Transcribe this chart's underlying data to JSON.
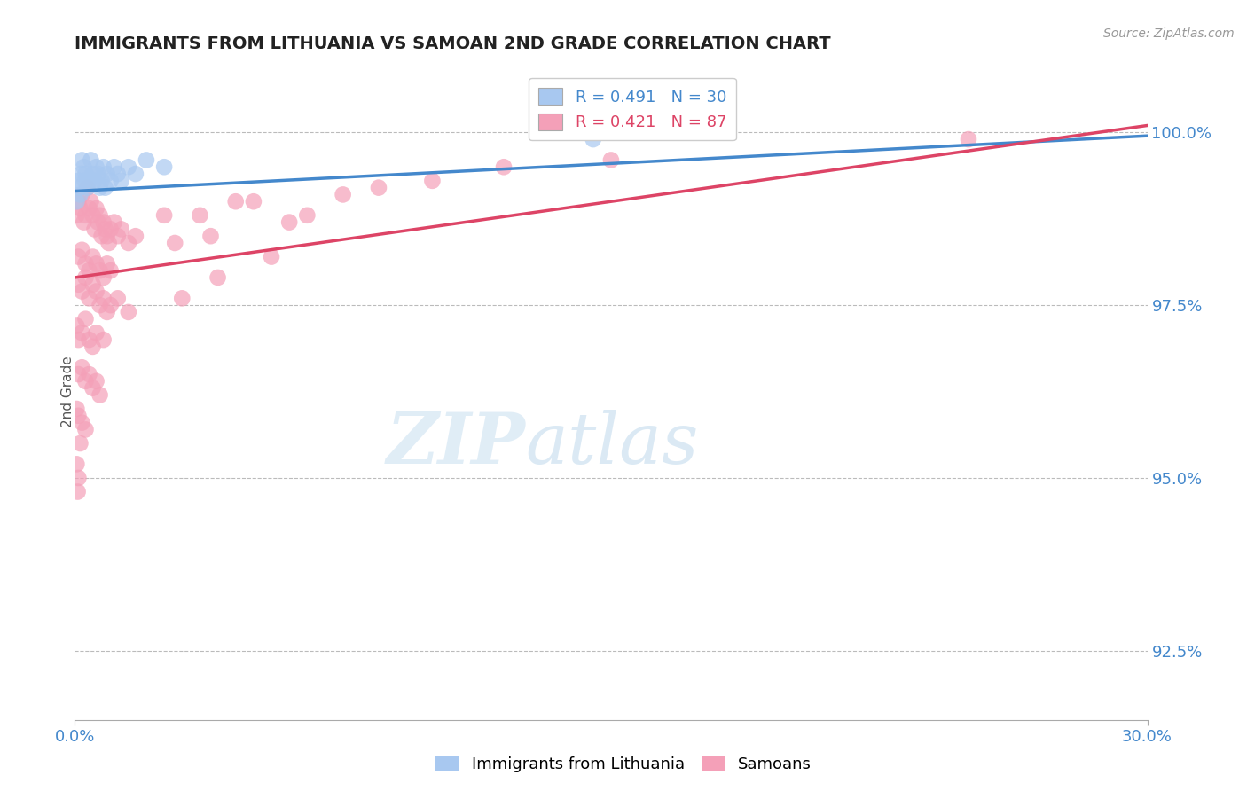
{
  "title": "IMMIGRANTS FROM LITHUANIA VS SAMOAN 2ND GRADE CORRELATION CHART",
  "source_text": "Source: ZipAtlas.com",
  "ylabel": "2nd Grade",
  "xlim": [
    0.0,
    30.0
  ],
  "ylim": [
    91.5,
    101.0
  ],
  "yticks": [
    92.5,
    95.0,
    97.5,
    100.0
  ],
  "ytick_labels": [
    "92.5%",
    "95.0%",
    "97.5%",
    "100.0%"
  ],
  "xtick_labels": [
    "0.0%",
    "30.0%"
  ],
  "blue_R": 0.491,
  "blue_N": 30,
  "pink_R": 0.421,
  "pink_N": 87,
  "blue_color": "#a8c8f0",
  "pink_color": "#f4a0b8",
  "blue_line_color": "#4488cc",
  "pink_line_color": "#dd4466",
  "legend_label_blue": "Immigrants from Lithuania",
  "legend_label_pink": "Samoans",
  "watermark_zip": "ZIP",
  "watermark_atlas": "atlas",
  "blue_dots": [
    [
      0.1,
      99.3
    ],
    [
      0.2,
      99.6
    ],
    [
      0.15,
      99.1
    ],
    [
      0.3,
      99.4
    ],
    [
      0.25,
      99.5
    ],
    [
      0.4,
      99.3
    ],
    [
      0.35,
      99.2
    ],
    [
      0.5,
      99.4
    ],
    [
      0.45,
      99.6
    ],
    [
      0.6,
      99.5
    ],
    [
      0.55,
      99.3
    ],
    [
      0.7,
      99.2
    ],
    [
      0.65,
      99.4
    ],
    [
      0.8,
      99.5
    ],
    [
      0.75,
      99.3
    ],
    [
      0.9,
      99.4
    ],
    [
      0.85,
      99.2
    ],
    [
      1.0,
      99.3
    ],
    [
      1.1,
      99.5
    ],
    [
      1.2,
      99.4
    ],
    [
      1.3,
      99.3
    ],
    [
      1.5,
      99.5
    ],
    [
      1.7,
      99.4
    ],
    [
      2.0,
      99.6
    ],
    [
      2.5,
      99.5
    ],
    [
      0.05,
      99.0
    ],
    [
      0.12,
      99.2
    ],
    [
      0.18,
      99.4
    ],
    [
      0.28,
      99.3
    ],
    [
      14.5,
      99.9
    ]
  ],
  "pink_dots": [
    [
      0.05,
      98.8
    ],
    [
      0.1,
      99.0
    ],
    [
      0.15,
      98.9
    ],
    [
      0.2,
      99.1
    ],
    [
      0.25,
      98.7
    ],
    [
      0.3,
      98.8
    ],
    [
      0.35,
      99.2
    ],
    [
      0.4,
      98.9
    ],
    [
      0.45,
      99.0
    ],
    [
      0.5,
      98.8
    ],
    [
      0.55,
      98.6
    ],
    [
      0.6,
      98.9
    ],
    [
      0.65,
      98.7
    ],
    [
      0.7,
      98.8
    ],
    [
      0.75,
      98.5
    ],
    [
      0.8,
      98.7
    ],
    [
      0.85,
      98.6
    ],
    [
      0.9,
      98.5
    ],
    [
      0.95,
      98.4
    ],
    [
      1.0,
      98.6
    ],
    [
      1.1,
      98.7
    ],
    [
      1.2,
      98.5
    ],
    [
      1.3,
      98.6
    ],
    [
      1.5,
      98.4
    ],
    [
      1.7,
      98.5
    ],
    [
      0.1,
      98.2
    ],
    [
      0.2,
      98.3
    ],
    [
      0.3,
      98.1
    ],
    [
      0.4,
      98.0
    ],
    [
      0.5,
      98.2
    ],
    [
      0.6,
      98.1
    ],
    [
      0.7,
      98.0
    ],
    [
      0.8,
      97.9
    ],
    [
      0.9,
      98.1
    ],
    [
      1.0,
      98.0
    ],
    [
      0.1,
      97.8
    ],
    [
      0.2,
      97.7
    ],
    [
      0.3,
      97.9
    ],
    [
      0.4,
      97.6
    ],
    [
      0.5,
      97.8
    ],
    [
      0.6,
      97.7
    ],
    [
      0.7,
      97.5
    ],
    [
      0.8,
      97.6
    ],
    [
      0.9,
      97.4
    ],
    [
      1.0,
      97.5
    ],
    [
      1.2,
      97.6
    ],
    [
      1.5,
      97.4
    ],
    [
      0.05,
      97.2
    ],
    [
      0.1,
      97.0
    ],
    [
      0.2,
      97.1
    ],
    [
      0.3,
      97.3
    ],
    [
      0.4,
      97.0
    ],
    [
      0.5,
      96.9
    ],
    [
      0.6,
      97.1
    ],
    [
      0.8,
      97.0
    ],
    [
      0.1,
      96.5
    ],
    [
      0.2,
      96.6
    ],
    [
      0.3,
      96.4
    ],
    [
      0.4,
      96.5
    ],
    [
      0.5,
      96.3
    ],
    [
      0.6,
      96.4
    ],
    [
      0.7,
      96.2
    ],
    [
      0.05,
      96.0
    ],
    [
      0.1,
      95.9
    ],
    [
      0.2,
      95.8
    ],
    [
      0.3,
      95.7
    ],
    [
      0.15,
      95.5
    ],
    [
      0.05,
      95.2
    ],
    [
      0.1,
      95.0
    ],
    [
      0.08,
      94.8
    ],
    [
      2.5,
      98.8
    ],
    [
      3.5,
      98.8
    ],
    [
      4.5,
      99.0
    ],
    [
      5.0,
      99.0
    ],
    [
      6.5,
      98.8
    ],
    [
      7.5,
      99.1
    ],
    [
      8.5,
      99.2
    ],
    [
      3.0,
      97.6
    ],
    [
      4.0,
      97.9
    ],
    [
      5.5,
      98.2
    ],
    [
      2.8,
      98.4
    ],
    [
      3.8,
      98.5
    ],
    [
      6.0,
      98.7
    ],
    [
      10.0,
      99.3
    ],
    [
      25.0,
      99.9
    ],
    [
      12.0,
      99.5
    ],
    [
      15.0,
      99.6
    ]
  ],
  "blue_line_x0": 0.0,
  "blue_line_y0": 99.15,
  "blue_line_x1": 30.0,
  "blue_line_y1": 99.95,
  "pink_line_x0": 0.0,
  "pink_line_y0": 97.9,
  "pink_line_x1": 30.0,
  "pink_line_y1": 100.1
}
